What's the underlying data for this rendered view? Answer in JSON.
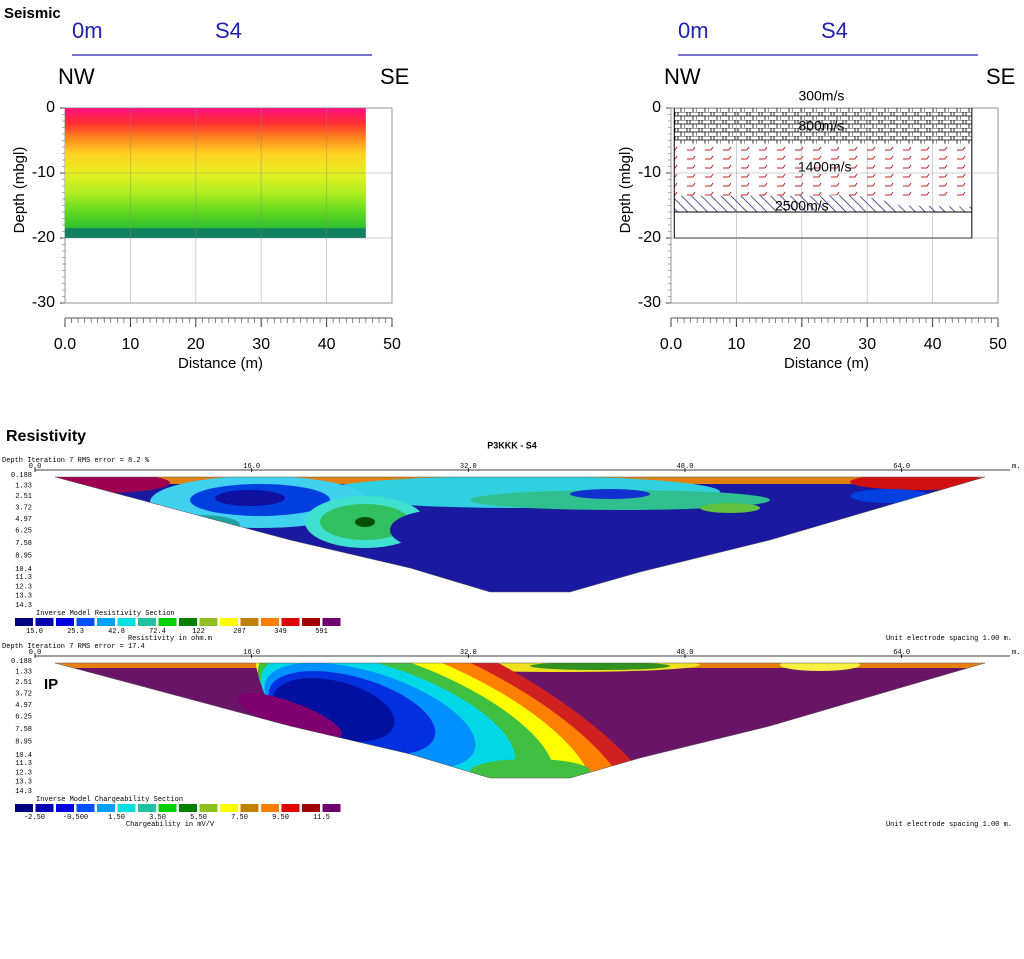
{
  "seismic": {
    "title": "Seismic",
    "panels": [
      {
        "start_label": "0m",
        "line_name": "S4",
        "left_dir": "NW",
        "right_dir": "SE",
        "xlabel": "Distance (m)",
        "ylabel": "Depth (mbgl)",
        "xlim": [
          0,
          50
        ],
        "ylim": [
          -30,
          0
        ],
        "xticks": [
          {
            "value": 0,
            "label": "0.0"
          },
          10,
          20,
          30,
          40,
          50
        ],
        "yticks": [
          0,
          -10,
          -20,
          -30
        ],
        "grid": true
      },
      {
        "start_label": "0m",
        "line_name": "S4",
        "left_dir": "NW",
        "right_dir": "SE",
        "xlabel": "Distance (m)",
        "ylabel": "Depth (mbgl)",
        "xlim": [
          0,
          50
        ],
        "ylim": [
          -30,
          0
        ],
        "xticks": [
          {
            "value": 0,
            "label": "0.0"
          },
          10,
          20,
          30,
          40,
          50
        ],
        "yticks": [
          0,
          -10,
          -20,
          -30
        ],
        "grid": true,
        "layer_labels": [
          "300m/s",
          "800m/s",
          "1400m/s",
          "2500m/s"
        ]
      }
    ]
  },
  "resistivity": {
    "title": "Resistivity",
    "section_title": "P3KKK - S4",
    "header": "Depth   Iteration 7 RMS error = 8.2 %",
    "xlim": [
      0,
      72
    ],
    "xticks": [
      {
        "value": 0,
        "label": "0.0"
      },
      {
        "value": 16,
        "label": "16.0"
      },
      {
        "value": 32,
        "label": "32.0"
      },
      {
        "value": 48,
        "label": "48.0"
      },
      {
        "value": 64,
        "label": "64.0"
      }
    ],
    "x_unit": "m.",
    "depths": [
      0.188,
      1.33,
      2.51,
      3.72,
      4.97,
      6.25,
      7.58,
      8.95,
      10.4,
      11.3,
      12.3,
      13.3,
      14.3
    ],
    "legend_title": "Inverse Model Resistivity Section",
    "scale_colors": [
      "#000080",
      "#0000b0",
      "#0000e0",
      "#0050ff",
      "#00a0ff",
      "#00e0e0",
      "#20c0a0",
      "#00d000",
      "#008000",
      "#90c020",
      "#ffff00",
      "#c08000",
      "#ff8000",
      "#e00000",
      "#a00000",
      "#700070"
    ],
    "scale_labels": [
      {
        "value": 15,
        "label": "15.0"
      },
      25.3,
      42.8,
      72.4,
      122,
      207,
      349,
      591
    ],
    "scale_unit": "Resistivity in ohm.m",
    "footer": "Unit electrode spacing 1.00 m."
  },
  "ip": {
    "label": "IP",
    "header": "Depth   Iteration 7 RMS error = 17.4",
    "xlim": [
      0,
      72
    ],
    "xticks": [
      {
        "value": 0,
        "label": "0.0"
      },
      {
        "value": 16,
        "label": "16.0"
      },
      {
        "value": 32,
        "label": "32.0"
      },
      {
        "value": 48,
        "label": "48.0"
      },
      {
        "value": 64,
        "label": "64.0"
      }
    ],
    "x_unit": "m.",
    "depths": [
      0.188,
      1.33,
      2.51,
      3.72,
      4.97,
      6.25,
      7.58,
      8.95,
      10.4,
      11.3,
      12.3,
      13.3,
      14.3
    ],
    "legend_title": "Inverse Model Chargeability Section",
    "scale_colors": [
      "#000080",
      "#0000b0",
      "#0000e0",
      "#0050ff",
      "#00a0ff",
      "#00e0e0",
      "#20c0a0",
      "#00d000",
      "#008000",
      "#90c020",
      "#ffff00",
      "#c08000",
      "#ff8000",
      "#e00000",
      "#a00000",
      "#700070"
    ],
    "scale_labels": [
      {
        "value": -2.5,
        "label": "-2.50"
      },
      {
        "value": -0.5,
        "label": "-0.500"
      },
      {
        "value": 1.5,
        "label": "1.50"
      },
      {
        "value": 3.5,
        "label": "3.50"
      },
      {
        "value": 5.5,
        "label": "5.50"
      },
      {
        "value": 7.5,
        "label": "7.50"
      },
      {
        "value": 9.5,
        "label": "9.50"
      },
      11.5
    ],
    "scale_unit": "Chargeability in mV/V",
    "footer": "Unit electrode spacing 1.00 m."
  }
}
